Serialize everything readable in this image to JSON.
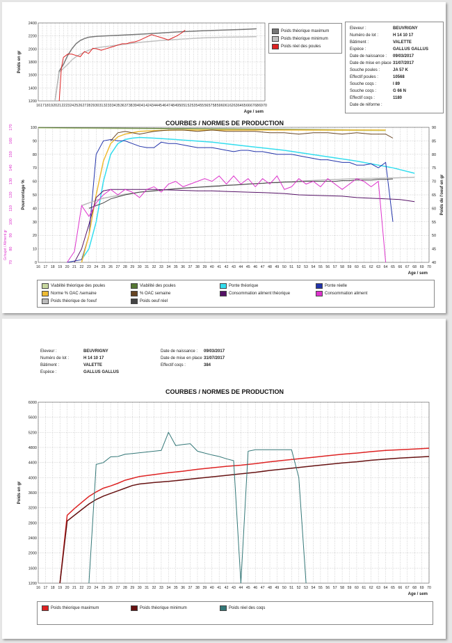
{
  "chart_data": [
    {
      "type": "line",
      "xlabel": "Age / sem",
      "ylabel": "Poids en gr",
      "xlim": [
        16,
        70
      ],
      "ylim": [
        1200,
        2400
      ],
      "series": [
        {
          "name": "Poids théorique maximum",
          "color": "#777777",
          "x": [
            20,
            21,
            22,
            23,
            24,
            25,
            26,
            27,
            28,
            30,
            35,
            40,
            45,
            50,
            55,
            60,
            65,
            68
          ],
          "y": [
            1200,
            1660,
            1760,
            1900,
            2000,
            2080,
            2130,
            2160,
            2180,
            2195,
            2210,
            2225,
            2245,
            2265,
            2280,
            2290,
            2300,
            2310
          ]
        },
        {
          "name": "Poids théorique minimum",
          "color": "#c0c0c0",
          "x": [
            20,
            21,
            22,
            23,
            24,
            25,
            26,
            28,
            30,
            35,
            40,
            45,
            50,
            55,
            60,
            65,
            68
          ],
          "y": [
            1200,
            1640,
            1700,
            1760,
            1830,
            1880,
            1920,
            1980,
            2020,
            2060,
            2100,
            2130,
            2150,
            2170,
            2180,
            2185,
            2190
          ]
        },
        {
          "name": "Poids réel des poules",
          "color": "#dd2222",
          "x": [
            21,
            21.5,
            22,
            23,
            24,
            25,
            26,
            27,
            28,
            29,
            30,
            31,
            32,
            33,
            34,
            35,
            36,
            37,
            38,
            39,
            40,
            41,
            42,
            43,
            44,
            45,
            46,
            47,
            48,
            49,
            50,
            51
          ],
          "y": [
            1200,
            1700,
            1870,
            1920,
            1920,
            1900,
            1880,
            1960,
            1930,
            2010,
            2000,
            1980,
            2000,
            2020,
            2040,
            2060,
            2080,
            2080,
            2100,
            2110,
            2130,
            2160,
            2190,
            2220,
            2200,
            2180,
            2160,
            2140,
            2170,
            2200,
            2240,
            2290
          ]
        }
      ]
    },
    {
      "type": "line",
      "title": "COURBES / NORMES DE PRODUCTION",
      "xlabel": "Age / sem",
      "ylabel": "Pourcentage %",
      "ylabel_left2": "Gr/sujet / Aliment gr",
      "ylabel_right": "Poids de l'oeuf en gr",
      "xlim": [
        16,
        70
      ],
      "ylim": [
        0,
        100
      ],
      "ylim_right": [
        40,
        90
      ],
      "ylim_left2": [
        70,
        170
      ],
      "series": [
        {
          "name": "Viabilité théorique des poules",
          "color": "#c8d8a0",
          "x": [
            16,
            20,
            30,
            40,
            50,
            60,
            64
          ],
          "y": [
            99.5,
            99.3,
            98.9,
            98.5,
            98.0,
            97.6,
            97.4
          ]
        },
        {
          "name": "Viabilité des poules",
          "color": "#557733",
          "x": [
            16,
            20,
            30,
            40,
            50,
            60,
            64
          ],
          "y": [
            99.9,
            99.7,
            99.4,
            99.0,
            98.6,
            98.2,
            98.0
          ]
        },
        {
          "name": "Ponte théorique",
          "color": "#33ddee",
          "x": [
            22,
            23,
            24,
            25,
            26,
            27,
            28,
            29,
            30,
            32,
            35,
            40,
            45,
            50,
            55,
            60,
            65,
            68
          ],
          "y": [
            2,
            10,
            30,
            60,
            80,
            88,
            91,
            92,
            92.5,
            92,
            91,
            89,
            86,
            83,
            79,
            75,
            70,
            66
          ]
        },
        {
          "name": "Ponte réelle",
          "color": "#2233aa",
          "x": [
            20,
            21,
            22,
            23,
            24,
            25,
            26,
            27,
            28,
            29,
            30,
            31,
            32,
            33,
            34,
            35,
            36,
            37,
            38,
            39,
            40,
            41,
            42,
            43,
            44,
            45,
            46,
            47,
            48,
            49,
            50,
            51,
            52,
            53,
            54,
            55,
            56,
            57,
            58,
            59,
            60,
            61,
            62,
            63,
            64,
            65
          ],
          "y": [
            0,
            1,
            2,
            20,
            80,
            90,
            91,
            90,
            90,
            88,
            86,
            85,
            85,
            89,
            88,
            88,
            87,
            86,
            85,
            85,
            85,
            84,
            83,
            82,
            83,
            83,
            82,
            82,
            81,
            80,
            80,
            80,
            79,
            78,
            77,
            76,
            76,
            75,
            74,
            74,
            72,
            72,
            73,
            70,
            74,
            30
          ]
        },
        {
          "name": "Norme % OAC /semaine",
          "color": "#eebb33",
          "x": [
            22,
            23,
            24,
            25,
            26,
            27,
            28,
            29,
            30,
            32,
            35,
            40,
            45,
            50,
            55,
            60,
            64
          ],
          "y": [
            0,
            20,
            50,
            75,
            88,
            93,
            95,
            96,
            97,
            97.5,
            98,
            98,
            98,
            98,
            98,
            98,
            98
          ]
        },
        {
          "name": "% OAC semaine",
          "color": "#664422",
          "x": [
            26,
            27,
            28,
            29,
            30,
            31,
            32,
            34,
            36,
            38,
            40,
            42,
            44,
            46,
            48,
            50,
            52,
            54,
            56,
            58,
            60,
            62,
            64,
            65
          ],
          "y": [
            90,
            96,
            97,
            96,
            95,
            96,
            97,
            98,
            98,
            97,
            98,
            97,
            97,
            97,
            96,
            96,
            95,
            96,
            96,
            95,
            96,
            95,
            95,
            92
          ]
        },
        {
          "name": "Poids théorique de l'oeuf",
          "color": "#bbbbbb",
          "x": [
            22,
            23,
            24,
            25,
            26,
            27,
            28,
            30,
            32,
            35,
            40,
            45,
            50,
            55,
            60,
            65,
            68
          ],
          "y": [
            42,
            44,
            46,
            47.5,
            48.5,
            49.5,
            50.5,
            52,
            53,
            54.5,
            56.5,
            58,
            59.5,
            61,
            62,
            62.5,
            63
          ]
        },
        {
          "name": "Poids oeuf réel",
          "color": "#444444",
          "x": [
            23,
            24,
            25,
            26,
            27,
            28,
            29,
            30,
            31,
            32,
            33,
            34,
            35,
            36,
            37,
            38,
            39,
            40,
            41,
            42,
            43,
            44,
            45,
            46,
            47,
            48,
            49,
            50,
            51,
            52,
            53,
            54,
            55,
            56,
            57,
            58,
            59,
            60,
            61,
            62,
            63,
            64,
            65
          ],
          "y": [
            40,
            42,
            44,
            47,
            48.5,
            50,
            51,
            52,
            52.5,
            53,
            53.5,
            54,
            54.5,
            55,
            55.3,
            55.6,
            55.9,
            56.2,
            56.5,
            57,
            57.2,
            57.5,
            58,
            58.3,
            58.5,
            59,
            59,
            59.5,
            59.5,
            59.8,
            60,
            60,
            60,
            60,
            60,
            60.5,
            60.5,
            61,
            61,
            61,
            61.5,
            61.5,
            61.8
          ]
        },
        {
          "name": "Consommation aliment théorique",
          "color": "#551166",
          "x": [
            21,
            22,
            23,
            24,
            25,
            26,
            28,
            30,
            32,
            35,
            38,
            40,
            42,
            45,
            48,
            50,
            52,
            55,
            58,
            60,
            62,
            64,
            66,
            68
          ],
          "y": [
            0,
            10,
            28,
            48,
            53,
            54,
            54,
            54,
            54,
            53.5,
            53,
            53,
            52.5,
            52,
            51.5,
            51,
            50,
            49.5,
            49,
            48,
            47.5,
            47,
            46.5,
            45
          ]
        },
        {
          "name": "Consommation aliment",
          "color": "#dd33cc",
          "x": [
            20,
            21,
            22,
            23,
            24,
            25,
            26,
            27,
            28,
            29,
            30,
            31,
            32,
            33,
            34,
            35,
            36,
            37,
            38,
            39,
            40,
            41,
            42,
            43,
            44,
            45,
            46,
            47,
            48,
            49,
            50,
            51,
            52,
            53,
            54,
            55,
            56,
            57,
            58,
            59,
            60,
            61,
            62,
            63,
            64
          ],
          "y": [
            0,
            8,
            42,
            34,
            44,
            50,
            54,
            50,
            54,
            52,
            48,
            54,
            56,
            52,
            58,
            60,
            56,
            58,
            60,
            62,
            60,
            64,
            58,
            64,
            58,
            62,
            56,
            62,
            58,
            64,
            54,
            56,
            62,
            58,
            60,
            56,
            62,
            58,
            54,
            58,
            62,
            60,
            56,
            60,
            0
          ]
        }
      ]
    },
    {
      "type": "line",
      "title": "COURBES / NORMES DE PRODUCTION",
      "xlabel": "Age / sem",
      "ylabel": "Poids en gr",
      "xlim": [
        16,
        70
      ],
      "ylim": [
        1200,
        6000
      ],
      "series": [
        {
          "name": "Poids théorique maximum",
          "color": "#dd2222",
          "x": [
            19,
            20,
            21,
            22,
            23,
            24,
            25,
            26,
            27,
            28,
            29,
            30,
            32,
            34,
            36,
            38,
            40,
            42,
            44,
            46,
            48,
            50,
            52,
            54,
            56,
            58,
            60,
            62,
            64,
            66,
            68,
            70
          ],
          "y": [
            1200,
            3000,
            3180,
            3340,
            3500,
            3620,
            3720,
            3780,
            3850,
            3930,
            3980,
            4030,
            4080,
            4130,
            4170,
            4220,
            4260,
            4300,
            4330,
            4370,
            4420,
            4460,
            4500,
            4540,
            4580,
            4620,
            4650,
            4690,
            4720,
            4740,
            4760,
            4780
          ]
        },
        {
          "name": "Poids théorique minimum",
          "color": "#661111",
          "x": [
            19,
            20,
            21,
            22,
            23,
            24,
            25,
            26,
            27,
            28,
            29,
            30,
            32,
            34,
            36,
            38,
            40,
            42,
            44,
            46,
            48,
            50,
            52,
            54,
            56,
            58,
            60,
            62,
            64,
            66,
            68,
            70
          ],
          "y": [
            1200,
            2850,
            3000,
            3150,
            3300,
            3420,
            3510,
            3580,
            3650,
            3720,
            3790,
            3830,
            3870,
            3900,
            3940,
            3980,
            4020,
            4060,
            4100,
            4140,
            4190,
            4230,
            4270,
            4310,
            4350,
            4390,
            4420,
            4460,
            4490,
            4520,
            4540,
            4560
          ]
        },
        {
          "name": "Poids réel des coqs",
          "color": "#337777",
          "x": [
            23,
            24,
            25,
            26,
            27,
            28,
            29,
            30,
            31,
            32,
            33,
            34,
            35,
            36,
            37,
            38,
            39,
            40,
            41,
            42,
            43,
            44,
            45,
            46,
            47,
            48,
            49,
            50,
            51,
            52,
            53
          ],
          "y": [
            1200,
            4350,
            4400,
            4550,
            4560,
            4620,
            4640,
            4660,
            4680,
            4700,
            4720,
            5200,
            4850,
            4880,
            4900,
            4700,
            4650,
            4600,
            4560,
            4500,
            4450,
            1200,
            4700,
            4740,
            4740,
            4740,
            4740,
            4740,
            4740,
            4000,
            1200
          ]
        }
      ]
    }
  ],
  "page1_info": [
    {
      "key": "Eleveur :",
      "value": "BEUVRIGNY"
    },
    {
      "key": "Numéro de lot :",
      "value": "H 14 10 17"
    },
    {
      "key": "Bâtiment :",
      "value": "VALETTE"
    },
    {
      "key": "Espèce :",
      "value": "GALLUS GALLUS"
    },
    {
      "key": "Date de naissance :",
      "value": "09/03/2017"
    },
    {
      "key": "Date de mise en place :",
      "value": "31/07/2017"
    },
    {
      "key": "Souche poules :",
      "value": "JA 57 K"
    },
    {
      "key": "Effectif poules :",
      "value": "10568"
    },
    {
      "key": "Souche coqs :",
      "value": "I 89"
    },
    {
      "key": "Souche coqs :",
      "value": "G 66 N"
    },
    {
      "key": "Effectif coqs :",
      "value": "1180"
    },
    {
      "key": "Date de réforme :",
      "value": ""
    }
  ],
  "page2_info_left": [
    {
      "key": "Eleveur :",
      "value": "BEUVRIGNY"
    },
    {
      "key": "Numéro de lot :",
      "value": "H 14 10 17"
    },
    {
      "key": "Bâtiment :",
      "value": "VALETTE"
    },
    {
      "key": "Espèce :",
      "value": "GALLUS GALLUS"
    }
  ],
  "page2_info_right": [
    {
      "key": "Date de naissance :",
      "value": "09/03/2017"
    },
    {
      "key": "Date de mise en place :",
      "value": "31/07/2017"
    },
    {
      "key": "Effectif coqs :",
      "value": "384"
    }
  ]
}
